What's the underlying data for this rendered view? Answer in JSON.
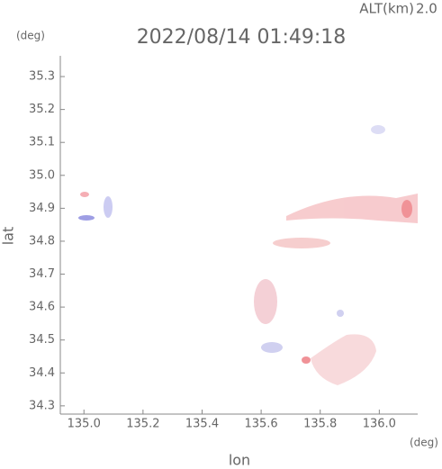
{
  "chart_data": {
    "type": "map",
    "title": "2022/08/14 01:49:18",
    "altitude_label": "ALT(km)",
    "altitude": "2.0",
    "x_unit": "(deg)",
    "y_unit": "(deg)",
    "xlabel": "lon",
    "ylabel": "lat",
    "xlim": [
      134.92,
      136.13
    ],
    "ylim": [
      34.275,
      35.363
    ],
    "xticks": [
      {
        "value": 135,
        "label": "135.0"
      },
      135.2,
      135.4,
      135.6,
      135.8,
      {
        "value": 136,
        "label": "136.0"
      }
    ],
    "yticks": [
      34.3,
      34.4,
      34.5,
      34.6,
      34.7,
      34.8,
      34.9,
      {
        "value": 35,
        "label": "35.0"
      },
      35.1,
      35.2,
      35.3
    ]
  }
}
